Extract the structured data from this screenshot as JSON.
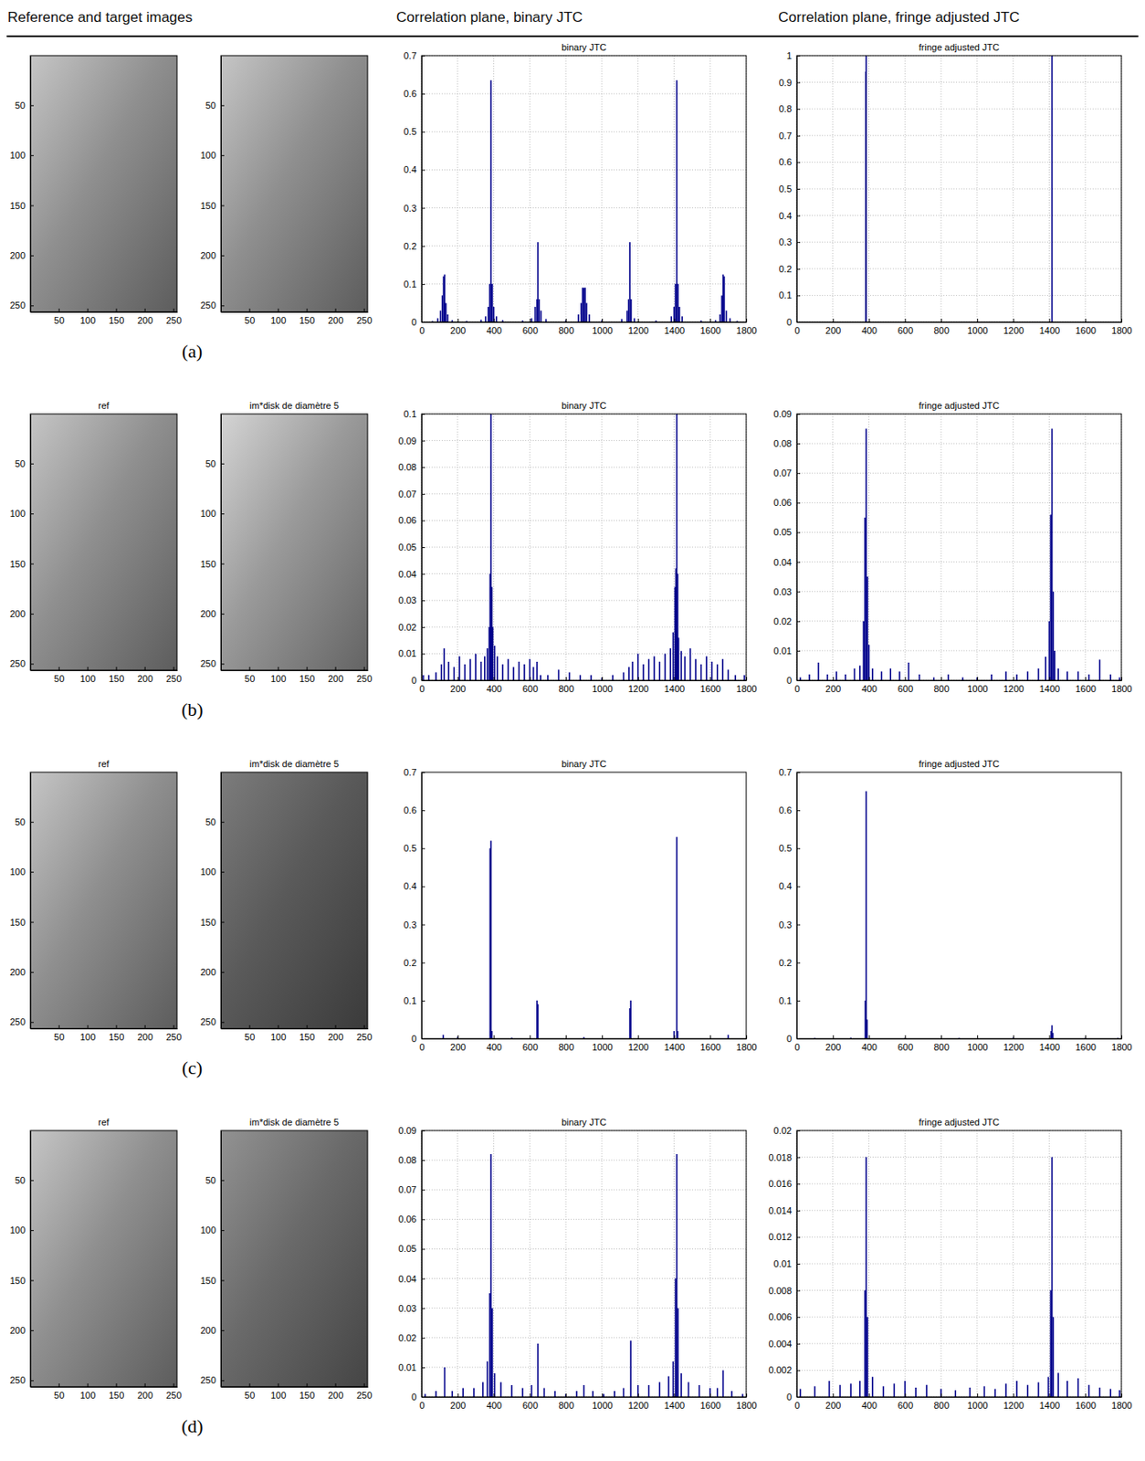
{
  "headers": [
    "Reference and target images",
    "Correlation plane, binary JTC",
    "Correlation plane, fringe adjusted JTC"
  ],
  "panel_labels": [
    "(a)",
    "(b)",
    "(c)",
    "(d)"
  ],
  "chart_data": [
    {
      "type": "image",
      "color": "#8f8f8f",
      "xlim": [
        0.5,
        256.5
      ],
      "ylim": [
        0.5,
        256.5
      ],
      "xticks": [
        50,
        100,
        150,
        200,
        250
      ],
      "yticks": [
        50,
        100,
        150,
        200,
        250
      ]
    },
    {
      "type": "image",
      "color": "#8f8f8f",
      "xlim": [
        0.5,
        256.5
      ],
      "ylim": [
        0.5,
        256.5
      ],
      "xticks": [
        50,
        100,
        150,
        200,
        250
      ],
      "yticks": [
        50,
        100,
        150,
        200,
        250
      ]
    },
    {
      "type": "bar",
      "title": "binary JTC",
      "color": "#00008b",
      "grid": true,
      "xlim": [
        0,
        1800
      ],
      "xticks": [
        0,
        200,
        400,
        600,
        800,
        1000,
        1200,
        1400,
        1600,
        1800
      ],
      "ylim": [
        0,
        0.7
      ],
      "yticks": [
        0,
        0.1,
        0.2,
        0.3,
        0.4,
        0.5,
        0.6,
        0.7
      ],
      "x": [
        60,
        90,
        105,
        115,
        122,
        128,
        135,
        145,
        170,
        250,
        330,
        355,
        370,
        378,
        385,
        392,
        400,
        415,
        450,
        560,
        610,
        630,
        640,
        645,
        652,
        662,
        690,
        800,
        870,
        885,
        893,
        900,
        907,
        915,
        930,
        1000,
        1110,
        1140,
        1148,
        1155,
        1162,
        1180,
        1300,
        1385,
        1400,
        1408,
        1415,
        1422,
        1430,
        1445,
        1550,
        1630,
        1655,
        1665,
        1672,
        1678,
        1690,
        1710,
        1750
      ],
      "values": [
        0.003,
        0.01,
        0.03,
        0.07,
        0.12,
        0.125,
        0.05,
        0.02,
        0.005,
        0.003,
        0.006,
        0.015,
        0.04,
        0.1,
        0.635,
        0.1,
        0.04,
        0.015,
        0.005,
        0.004,
        0.01,
        0.04,
        0.06,
        0.21,
        0.06,
        0.03,
        0.008,
        0.005,
        0.02,
        0.05,
        0.09,
        0.09,
        0.09,
        0.05,
        0.02,
        0.005,
        0.008,
        0.03,
        0.06,
        0.21,
        0.06,
        0.01,
        0.004,
        0.015,
        0.04,
        0.1,
        0.635,
        0.1,
        0.04,
        0.015,
        0.004,
        0.005,
        0.02,
        0.07,
        0.125,
        0.12,
        0.03,
        0.01,
        0.003
      ]
    },
    {
      "type": "bar",
      "title": "fringe adjusted JTC",
      "color": "#00008b",
      "grid": true,
      "xlim": [
        0,
        1800
      ],
      "xticks": [
        0,
        200,
        400,
        600,
        800,
        1000,
        1200,
        1400,
        1600,
        1800
      ],
      "ylim": [
        0,
        1
      ],
      "yticks": [
        0,
        0.1,
        0.2,
        0.3,
        0.4,
        0.5,
        0.6,
        0.7,
        0.8,
        0.9,
        1
      ],
      "x": [
        383,
        385,
        1415
      ],
      "values": [
        0.94,
        1,
        1
      ]
    },
    {
      "type": "image",
      "title": "ref",
      "color": "#8f8f8f",
      "xlim": [
        0.5,
        256.5
      ],
      "ylim": [
        0.5,
        256.5
      ],
      "xticks": [
        50,
        100,
        150,
        200,
        250
      ],
      "yticks": [
        50,
        100,
        150,
        200,
        250
      ]
    },
    {
      "type": "image",
      "title": "im*disk de diamètre 5",
      "color": "#9a9a9a",
      "xlim": [
        0.5,
        256.5
      ],
      "ylim": [
        0.5,
        256.5
      ],
      "xticks": [
        50,
        100,
        150,
        200,
        250
      ],
      "yticks": [
        50,
        100,
        150,
        200,
        250
      ]
    },
    {
      "type": "bar",
      "title": "binary JTC",
      "color": "#00008b",
      "grid": true,
      "xlim": [
        0,
        1800
      ],
      "xticks": [
        0,
        200,
        400,
        600,
        800,
        1000,
        1200,
        1400,
        1600,
        1800
      ],
      "ylim": [
        0,
        0.1
      ],
      "yticks": [
        0,
        0.01,
        0.02,
        0.03,
        0.04,
        0.05,
        0.06,
        0.07,
        0.08,
        0.09,
        0.1
      ],
      "x": [
        10,
        40,
        80,
        110,
        125,
        150,
        180,
        210,
        240,
        270,
        300,
        330,
        350,
        365,
        375,
        380,
        385,
        390,
        395,
        405,
        420,
        450,
        480,
        510,
        540,
        570,
        600,
        620,
        640,
        660,
        700,
        760,
        820,
        880,
        940,
        1000,
        1060,
        1120,
        1150,
        1170,
        1200,
        1230,
        1260,
        1290,
        1320,
        1350,
        1380,
        1395,
        1405,
        1410,
        1415,
        1420,
        1425,
        1440,
        1460,
        1490,
        1520,
        1550,
        1580,
        1610,
        1640,
        1670,
        1700,
        1740,
        1790
      ],
      "values": [
        0.002,
        0.002,
        0.003,
        0.006,
        0.012,
        0.007,
        0.005,
        0.009,
        0.006,
        0.008,
        0.01,
        0.007,
        0.009,
        0.012,
        0.02,
        0.04,
        0.1,
        0.035,
        0.02,
        0.013,
        0.009,
        0.006,
        0.008,
        0.005,
        0.007,
        0.006,
        0.008,
        0.005,
        0.007,
        0.002,
        0.002,
        0.004,
        0.003,
        0.002,
        0.002,
        0.001,
        0.002,
        0.003,
        0.005,
        0.007,
        0.01,
        0.006,
        0.008,
        0.009,
        0.007,
        0.01,
        0.012,
        0.018,
        0.035,
        0.042,
        0.1,
        0.04,
        0.016,
        0.011,
        0.009,
        0.012,
        0.008,
        0.006,
        0.009,
        0.007,
        0.006,
        0.008,
        0.004,
        0.002,
        0.002
      ]
    },
    {
      "type": "bar",
      "title": "fringe adjusted JTC",
      "color": "#00008b",
      "grid": true,
      "xlim": [
        0,
        1800
      ],
      "xticks": [
        0,
        200,
        400,
        600,
        800,
        1000,
        1200,
        1400,
        1600,
        1800
      ],
      "ylim": [
        0,
        0.09
      ],
      "yticks": [
        0,
        0.01,
        0.02,
        0.03,
        0.04,
        0.05,
        0.06,
        0.07,
        0.08,
        0.09
      ],
      "x": [
        20,
        70,
        120,
        170,
        220,
        270,
        320,
        350,
        370,
        378,
        385,
        392,
        400,
        420,
        470,
        520,
        570,
        620,
        680,
        760,
        840,
        920,
        1000,
        1080,
        1160,
        1220,
        1280,
        1340,
        1380,
        1400,
        1408,
        1415,
        1422,
        1430,
        1450,
        1500,
        1560,
        1620,
        1680,
        1740,
        1790
      ],
      "values": [
        0.001,
        0.002,
        0.006,
        0.002,
        0.003,
        0.002,
        0.004,
        0.005,
        0.02,
        0.055,
        0.085,
        0.035,
        0.012,
        0.004,
        0.003,
        0.004,
        0.003,
        0.006,
        0.002,
        0.001,
        0.002,
        0.001,
        0.001,
        0.002,
        0.003,
        0.002,
        0.003,
        0.004,
        0.008,
        0.02,
        0.056,
        0.085,
        0.03,
        0.01,
        0.004,
        0.003,
        0.003,
        0.002,
        0.007,
        0.002,
        0.001
      ]
    },
    {
      "type": "image",
      "title": "ref",
      "color": "#8f8f8f",
      "xlim": [
        0.5,
        256.5
      ],
      "ylim": [
        0.5,
        256.5
      ],
      "xticks": [
        50,
        100,
        150,
        200,
        250
      ],
      "yticks": [
        50,
        100,
        150,
        200,
        250
      ]
    },
    {
      "type": "image",
      "title": "im*disk de diamètre 5",
      "color": "#5a5a5a",
      "xlim": [
        0.5,
        256.5
      ],
      "ylim": [
        0.5,
        256.5
      ],
      "xticks": [
        50,
        100,
        150,
        200,
        250
      ],
      "yticks": [
        50,
        100,
        150,
        200,
        250
      ]
    },
    {
      "type": "bar",
      "title": "binary JTC",
      "color": "#00008b",
      "grid": false,
      "xlim": [
        0,
        1800
      ],
      "xticks": [
        0,
        200,
        400,
        600,
        800,
        1000,
        1200,
        1400,
        1600,
        1800
      ],
      "ylim": [
        0,
        0.7
      ],
      "yticks": [
        0,
        0.1,
        0.2,
        0.3,
        0.4,
        0.5,
        0.6,
        0.7
      ],
      "x": [
        120,
        200,
        380,
        385,
        390,
        500,
        640,
        645,
        900,
        1155,
        1160,
        1400,
        1415,
        1420,
        1700
      ],
      "values": [
        0.01,
        0.005,
        0.5,
        0.52,
        0.02,
        0.003,
        0.1,
        0.09,
        0.004,
        0.08,
        0.1,
        0.02,
        0.53,
        0.02,
        0.01
      ]
    },
    {
      "type": "bar",
      "title": "fringe adjusted JTC",
      "color": "#00008b",
      "grid": false,
      "xlim": [
        0,
        1800
      ],
      "xticks": [
        0,
        200,
        400,
        600,
        800,
        1000,
        1200,
        1400,
        1600,
        1800
      ],
      "ylim": [
        0,
        0.7
      ],
      "yticks": [
        0,
        0.1,
        0.2,
        0.3,
        0.4,
        0.5,
        0.6,
        0.7
      ],
      "x": [
        100,
        300,
        380,
        385,
        390,
        600,
        900,
        1200,
        1410,
        1415,
        1420,
        1600,
        1780
      ],
      "values": [
        0.002,
        0.003,
        0.1,
        0.65,
        0.05,
        0.002,
        0.002,
        0.003,
        0.02,
        0.035,
        0.015,
        0.002,
        0.002
      ]
    },
    {
      "type": "image",
      "title": "ref",
      "color": "#8f8f8f",
      "xlim": [
        0.5,
        256.5
      ],
      "ylim": [
        0.5,
        256.5
      ],
      "xticks": [
        50,
        100,
        150,
        200,
        250
      ],
      "yticks": [
        50,
        100,
        150,
        200,
        250
      ]
    },
    {
      "type": "image",
      "title": "im*disk de diamètre 5",
      "color": "#6a6a6a",
      "xlim": [
        0.5,
        256.5
      ],
      "ylim": [
        0.5,
        256.5
      ],
      "xticks": [
        50,
        100,
        150,
        200,
        250
      ],
      "yticks": [
        50,
        100,
        150,
        200,
        250
      ]
    },
    {
      "type": "bar",
      "title": "binary JTC",
      "color": "#00008b",
      "grid": true,
      "xlim": [
        0,
        1800
      ],
      "xticks": [
        0,
        200,
        400,
        600,
        800,
        1000,
        1200,
        1400,
        1600,
        1800
      ],
      "ylim": [
        0,
        0.09
      ],
      "yticks": [
        0,
        0.01,
        0.02,
        0.03,
        0.04,
        0.05,
        0.06,
        0.07,
        0.08,
        0.09
      ],
      "x": [
        20,
        80,
        128,
        170,
        230,
        290,
        340,
        365,
        378,
        385,
        392,
        405,
        440,
        500,
        560,
        610,
        645,
        680,
        740,
        800,
        860,
        900,
        950,
        1010,
        1070,
        1120,
        1160,
        1200,
        1260,
        1320,
        1370,
        1395,
        1408,
        1415,
        1422,
        1440,
        1480,
        1540,
        1600,
        1640,
        1672,
        1720,
        1780
      ],
      "values": [
        0.001,
        0.002,
        0.01,
        0.002,
        0.003,
        0.003,
        0.005,
        0.012,
        0.035,
        0.082,
        0.03,
        0.008,
        0.005,
        0.004,
        0.003,
        0.004,
        0.018,
        0.003,
        0.002,
        0.001,
        0.002,
        0.004,
        0.002,
        0.001,
        0.002,
        0.003,
        0.019,
        0.004,
        0.004,
        0.005,
        0.007,
        0.012,
        0.04,
        0.082,
        0.03,
        0.008,
        0.005,
        0.004,
        0.003,
        0.003,
        0.009,
        0.002,
        0.001
      ]
    },
    {
      "type": "bar",
      "title": "fringe adjusted JTC",
      "color": "#00008b",
      "grid": true,
      "xlim": [
        0,
        1800
      ],
      "xticks": [
        0,
        200,
        400,
        600,
        800,
        1000,
        1200,
        1400,
        1600,
        1800
      ],
      "ylim": [
        0,
        0.02
      ],
      "yticks": [
        0,
        0.002,
        0.004,
        0.006,
        0.008,
        0.01,
        0.012,
        0.014,
        0.016,
        0.018,
        0.02
      ],
      "x": [
        20,
        100,
        180,
        240,
        300,
        350,
        378,
        385,
        392,
        420,
        480,
        540,
        600,
        660,
        720,
        800,
        880,
        960,
        1040,
        1100,
        1160,
        1220,
        1280,
        1340,
        1395,
        1408,
        1415,
        1422,
        1450,
        1500,
        1560,
        1620,
        1680,
        1740,
        1790
      ],
      "values": [
        0.0006,
        0.0008,
        0.0012,
        0.0009,
        0.001,
        0.0012,
        0.008,
        0.018,
        0.006,
        0.0015,
        0.0008,
        0.001,
        0.0012,
        0.0007,
        0.0009,
        0.0006,
        0.0005,
        0.0007,
        0.0008,
        0.0006,
        0.001,
        0.0012,
        0.0009,
        0.0011,
        0.0015,
        0.008,
        0.018,
        0.006,
        0.0018,
        0.0012,
        0.0014,
        0.0009,
        0.0007,
        0.0006,
        0.0005
      ]
    }
  ]
}
